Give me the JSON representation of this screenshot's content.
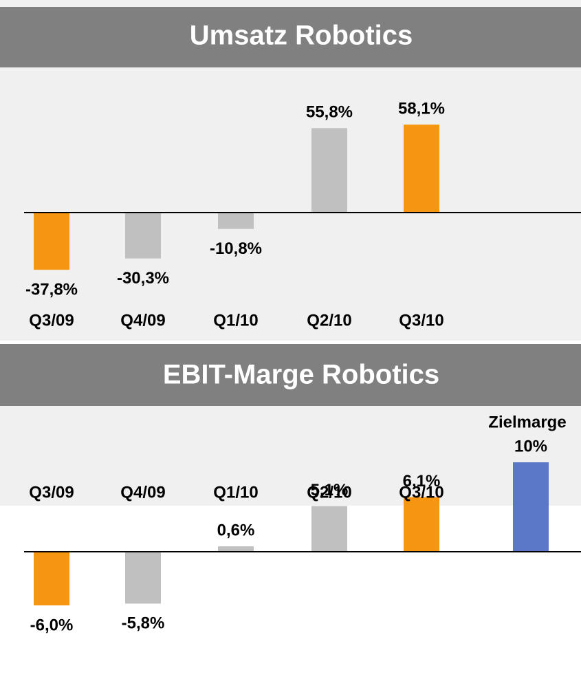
{
  "chart_data": [
    {
      "type": "bar",
      "title": "Umsatz Robotics",
      "categories": [
        "Q3/09",
        "Q4/09",
        "Q1/10",
        "Q2/10",
        "Q3/10"
      ],
      "values": [
        -37.8,
        -30.3,
        -10.8,
        55.8,
        58.1
      ],
      "value_labels": [
        "-37,8%",
        "-30,3%",
        "-10,8%",
        "55,8%",
        "58,1%"
      ],
      "colors": [
        "#f59613",
        "#c0c0c0",
        "#c0c0c0",
        "#c0c0c0",
        "#f59613"
      ]
    },
    {
      "type": "bar",
      "title": "EBIT-Marge Robotics",
      "categories": [
        "Q3/09",
        "Q4/09",
        "Q1/10",
        "Q2/10",
        "Q3/10",
        null
      ],
      "values": [
        -6.0,
        -5.8,
        0.6,
        5.1,
        6.1,
        10
      ],
      "value_labels": [
        "-6,0%",
        "-5,8%",
        "0,6%",
        "5,1%",
        "6,1%",
        "10%"
      ],
      "colors": [
        "#f59613",
        "#c0c0c0",
        "#c0c0c0",
        "#c0c0c0",
        "#f59613",
        "#5b78c8"
      ],
      "annotation": "Zielmarge"
    }
  ]
}
